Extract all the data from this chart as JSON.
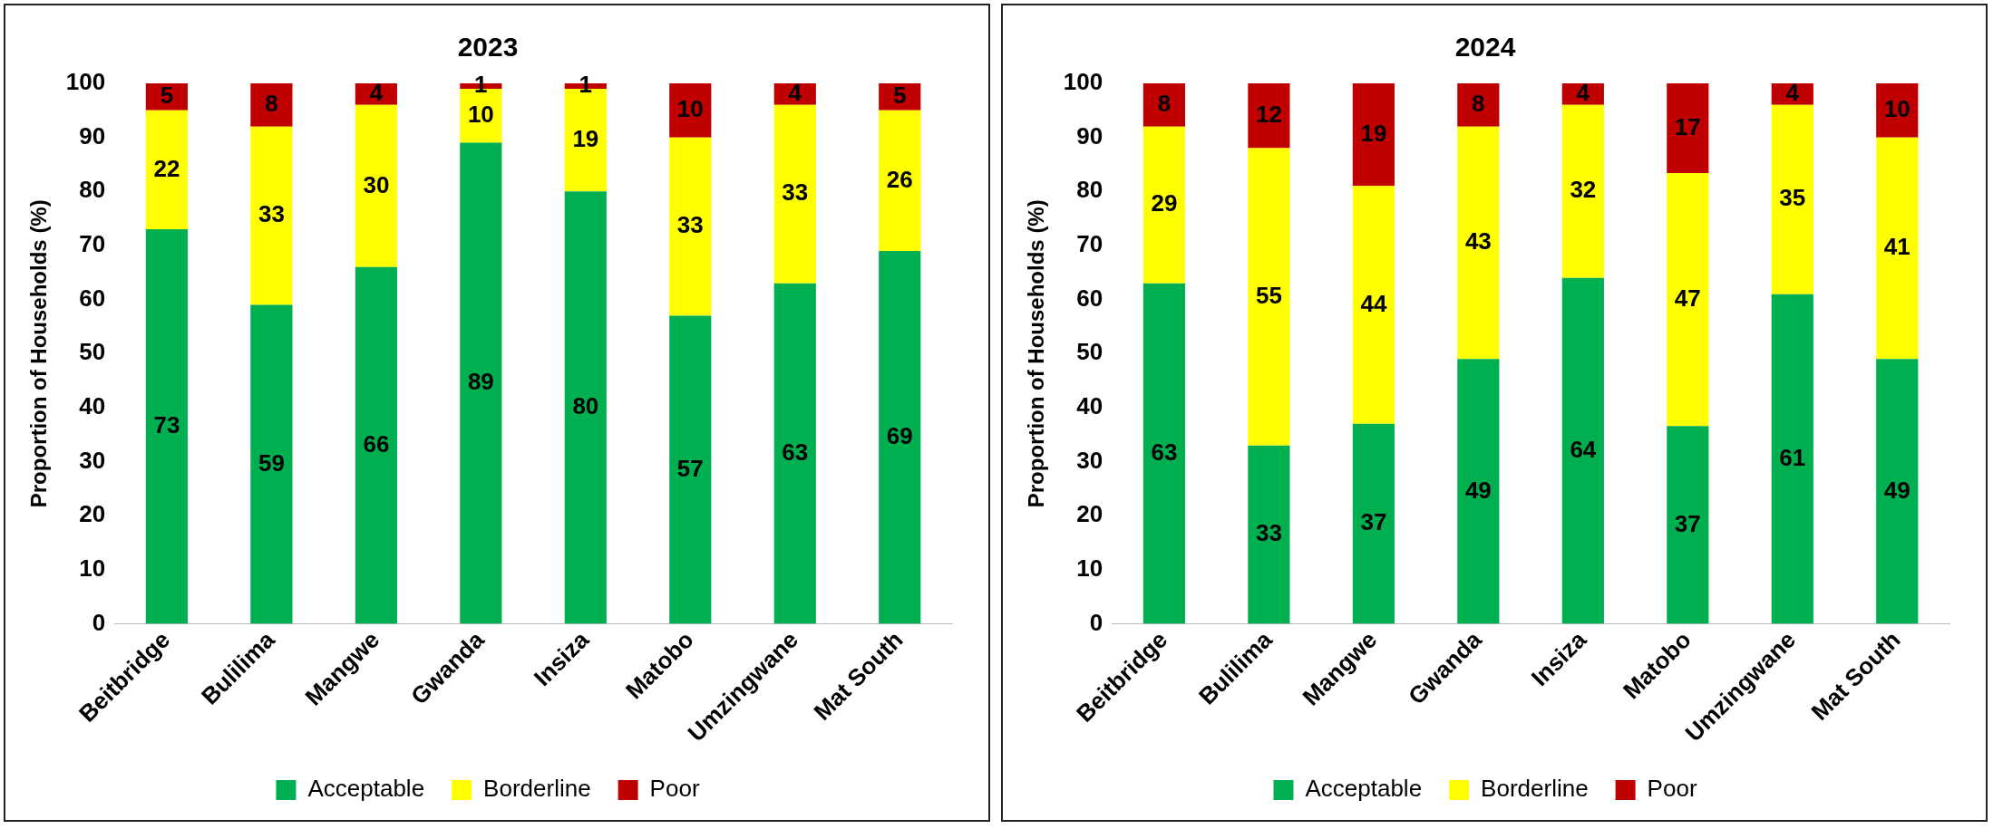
{
  "chart_data": [
    {
      "type": "bar",
      "title": "2023",
      "ylabel": "Proportion of Households (%)",
      "categories": [
        "Beitbridge",
        "Bulilima",
        "Mangwe",
        "Gwanda",
        "Insiza",
        "Matobo",
        "Umzingwane",
        "Mat South"
      ],
      "stacked": true,
      "ylim": [
        0,
        100
      ],
      "yticks": [
        0,
        10,
        20,
        30,
        40,
        50,
        60,
        70,
        80,
        90,
        100
      ],
      "grid": false,
      "legend": "bottom",
      "data_labels": true,
      "series": [
        {
          "name": "Acceptable",
          "color": "#00b050",
          "values": [
            73,
            59,
            66,
            89,
            80,
            57,
            63,
            69
          ]
        },
        {
          "name": "Borderline",
          "color": "#ffff00",
          "values": [
            22,
            33,
            30,
            10,
            19,
            33,
            33,
            26
          ]
        },
        {
          "name": "Poor",
          "color": "#c00000",
          "values": [
            5,
            8,
            4,
            1,
            1,
            10,
            4,
            5
          ]
        }
      ]
    },
    {
      "type": "bar",
      "title": "2024",
      "ylabel": "Proportion of Households (%)",
      "categories": [
        "Beitbridge",
        "Bulilima",
        "Mangwe",
        "Gwanda",
        "Insiza",
        "Matobo",
        "Umzingwane",
        "Mat South"
      ],
      "stacked": true,
      "ylim": [
        0,
        100
      ],
      "yticks": [
        0,
        10,
        20,
        30,
        40,
        50,
        60,
        70,
        80,
        90,
        100
      ],
      "grid": false,
      "legend": "bottom",
      "series": [
        {
          "name": "Acceptable",
          "color": "#00b050",
          "values": [
            63,
            33,
            37,
            49,
            64,
            36.6,
            61,
            49
          ],
          "value_labels": [
            "63",
            "33",
            "37",
            "49",
            "64",
            "37",
            "61",
            "49"
          ]
        },
        {
          "name": "Borderline",
          "color": "#ffff00",
          "values": [
            29,
            55,
            44,
            43,
            32,
            46.8,
            35,
            41
          ],
          "value_labels": [
            "29",
            "55",
            "44",
            "43",
            "32",
            "47",
            "35",
            "41"
          ]
        },
        {
          "name": "Poor",
          "color": "#c00000",
          "values": [
            8,
            12,
            19,
            8,
            4,
            16.6,
            4,
            10
          ],
          "value_labels": [
            "8",
            "12",
            "19",
            "8",
            "4",
            "17",
            "4",
            "10"
          ]
        }
      ]
    }
  ]
}
